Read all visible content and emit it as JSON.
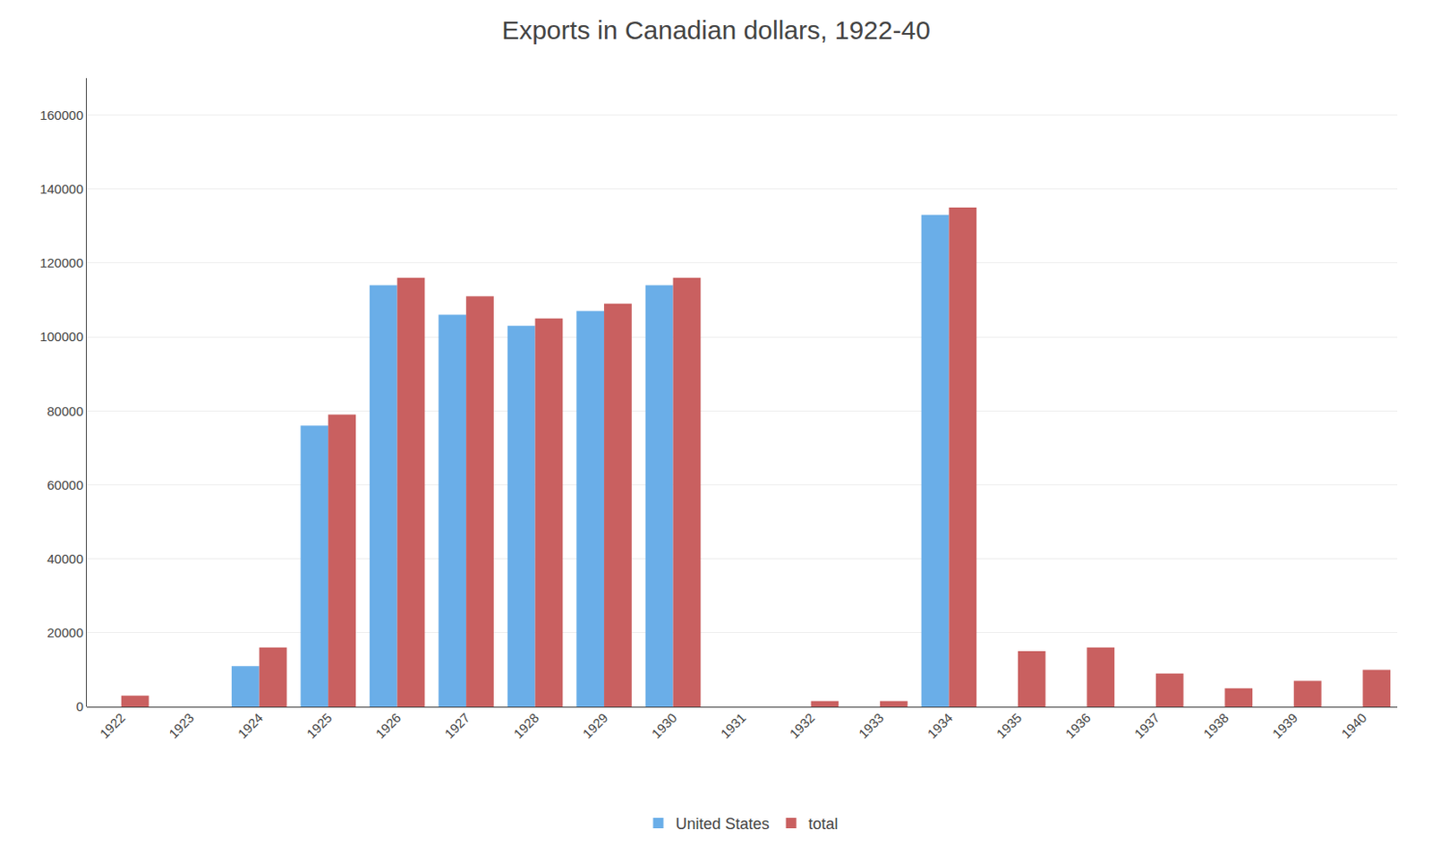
{
  "chart_data": {
    "type": "bar",
    "title": "Exports in Canadian dollars, 1922-40",
    "categories": [
      "1922",
      "1923",
      "1924",
      "1925",
      "1926",
      "1927",
      "1928",
      "1929",
      "1930",
      "1931",
      "1932",
      "1933",
      "1934",
      "1935",
      "1936",
      "1937",
      "1938",
      "1939",
      "1940"
    ],
    "series": [
      {
        "name": "United States",
        "color": "#6aaee8",
        "values": [
          0,
          0,
          11000,
          76000,
          114000,
          106000,
          103000,
          107000,
          114000,
          0,
          0,
          0,
          133000,
          0,
          0,
          0,
          0,
          0,
          0
        ]
      },
      {
        "name": "total",
        "color": "#c96060",
        "values": [
          3000,
          0,
          16000,
          79000,
          116000,
          111000,
          105000,
          109000,
          116000,
          0,
          1500,
          1500,
          135000,
          15000,
          16000,
          9000,
          5000,
          7000,
          10000
        ]
      }
    ],
    "ylim": [
      0,
      170000
    ],
    "yticks": [
      0,
      20000,
      40000,
      60000,
      80000,
      100000,
      120000,
      140000,
      160000
    ],
    "grid": true,
    "legend": "bottom"
  }
}
